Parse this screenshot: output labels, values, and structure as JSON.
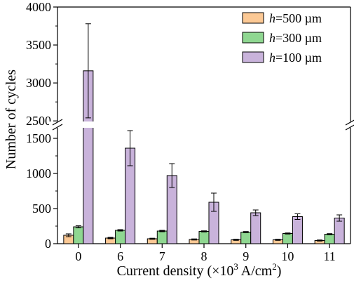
{
  "chart_data": {
    "type": "bar",
    "xlabel_prefix": "Current density (×10",
    "xlabel_exp1": "3",
    "xlabel_mid": " A/cm",
    "xlabel_exp2": "2",
    "xlabel_suffix": ")",
    "ylabel": "Number of cycles",
    "categories": [
      "0",
      "6",
      "7",
      "8",
      "9",
      "10",
      "11"
    ],
    "axis_break": true,
    "ylim_lower": [
      0,
      1750
    ],
    "ylim_upper": [
      2400,
      4000
    ],
    "yticks_lower": [
      "0",
      "500",
      "1000",
      "1500"
    ],
    "yticks_upper": [
      "2500",
      "3000",
      "3500",
      "4000"
    ],
    "legend_position": "top-right",
    "series": [
      {
        "name_var": "h",
        "name_rest": "=500 µm",
        "color": "#fcc995",
        "values": [
          120,
          80,
          70,
          60,
          55,
          55,
          45
        ],
        "errors": [
          20,
          10,
          8,
          8,
          8,
          8,
          8
        ]
      },
      {
        "name_var": "h",
        "name_rest": "=300 µm",
        "color": "#8fd791",
        "values": [
          240,
          190,
          180,
          175,
          165,
          145,
          135
        ],
        "errors": [
          15,
          10,
          10,
          8,
          8,
          8,
          8
        ]
      },
      {
        "name_var": "h",
        "name_rest": "=100 µm",
        "color": "#c9b3db",
        "values": [
          3160,
          1360,
          970,
          590,
          440,
          385,
          365
        ],
        "errors": [
          620,
          250,
          170,
          130,
          40,
          40,
          45
        ]
      }
    ]
  }
}
